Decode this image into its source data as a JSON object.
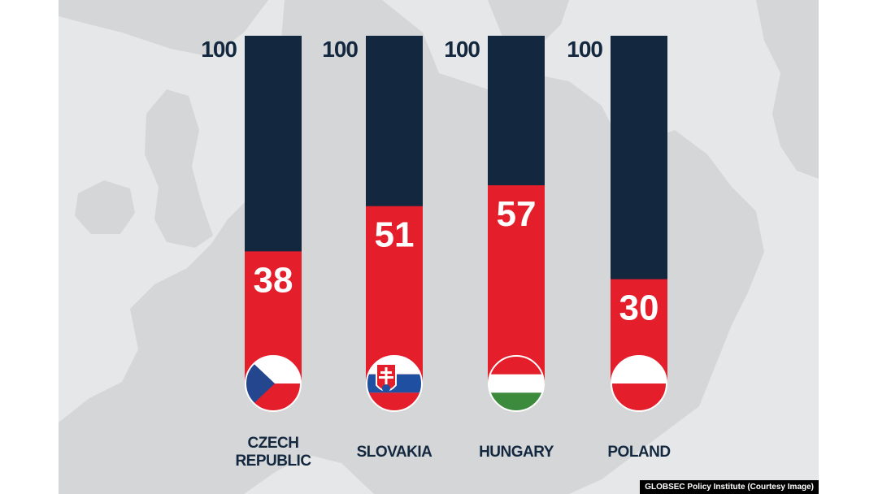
{
  "chart_data": {
    "type": "bar",
    "categories": [
      "CZECH\nREPUBLIC",
      "SLOVAKIA",
      "HUNGARY",
      "POLAND"
    ],
    "values": [
      38,
      51,
      57,
      30
    ],
    "max_label": "100",
    "ylim": [
      0,
      100
    ],
    "grid": false,
    "colors": {
      "fill": "#e41f2b",
      "track": "#13283f",
      "label": "#13283f",
      "value_text": "#ffffff",
      "background": "#e6e7e9",
      "map": "#d7d8da"
    },
    "flags": [
      "czech-republic-flag-icon",
      "slovakia-flag-icon",
      "hungary-flag-icon",
      "poland-flag-icon"
    ]
  },
  "credit": "GLOBSEC Policy Institute (Courtesy Image)"
}
